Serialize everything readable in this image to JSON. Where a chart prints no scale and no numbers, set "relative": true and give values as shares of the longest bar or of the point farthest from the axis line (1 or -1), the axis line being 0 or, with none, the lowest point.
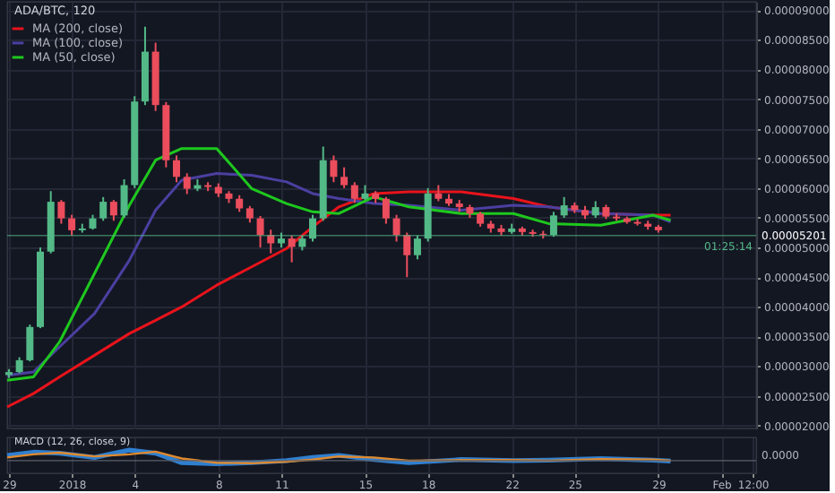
{
  "chart_data": [
    {
      "type": "candlestick",
      "title": "ADA/BTC, 120",
      "x": [
        "2017-12-29T00:00",
        "2017-12-29T12:00",
        "2017-12-30T00:00",
        "2017-12-30T12:00",
        "2017-12-31T00:00",
        "2017-12-31T12:00",
        "2018-01-01T00:00",
        "2018-01-01T12:00",
        "2018-01-02T00:00",
        "2018-01-02T12:00",
        "2018-01-03T00:00",
        "2018-01-03T12:00",
        "2018-01-04T00:00",
        "2018-01-04T12:00",
        "2018-01-05T00:00",
        "2018-01-05T12:00",
        "2018-01-06T00:00",
        "2018-01-06T12:00",
        "2018-01-07T00:00",
        "2018-01-07T12:00",
        "2018-01-08T00:00",
        "2018-01-08T12:00",
        "2018-01-09T00:00",
        "2018-01-09T12:00",
        "2018-01-10T00:00",
        "2018-01-10T12:00",
        "2018-01-11T00:00",
        "2018-01-11T12:00",
        "2018-01-12T00:00",
        "2018-01-12T12:00",
        "2018-01-13T00:00",
        "2018-01-13T12:00",
        "2018-01-14T00:00",
        "2018-01-14T12:00",
        "2018-01-15T00:00",
        "2018-01-15T12:00",
        "2018-01-16T00:00",
        "2018-01-16T12:00",
        "2018-01-17T00:00",
        "2018-01-17T12:00",
        "2018-01-18T00:00",
        "2018-01-18T12:00",
        "2018-01-19T00:00",
        "2018-01-19T12:00",
        "2018-01-20T00:00",
        "2018-01-20T12:00",
        "2018-01-21T00:00",
        "2018-01-21T12:00",
        "2018-01-22T00:00",
        "2018-01-22T12:00",
        "2018-01-23T00:00",
        "2018-01-23T12:00",
        "2018-01-24T00:00",
        "2018-01-24T12:00",
        "2018-01-25T00:00",
        "2018-01-25T12:00",
        "2018-01-26T00:00",
        "2018-01-26T12:00",
        "2018-01-27T00:00",
        "2018-01-27T12:00",
        "2018-01-28T00:00",
        "2018-01-28T12:00",
        "2018-01-29T00:00"
      ],
      "ohlc": [
        [
          2.85e-05,
          2.95e-05,
          2.8e-05,
          2.9e-05
        ],
        [
          2.9e-05,
          3.15e-05,
          2.88e-05,
          3.1e-05
        ],
        [
          3.1e-05,
          3.7e-05,
          3.08e-05,
          3.66e-05
        ],
        [
          3.66e-05,
          5e-05,
          3.64e-05,
          4.93e-05
        ],
        [
          4.93e-05,
          5.95e-05,
          4.9e-05,
          5.77e-05
        ],
        [
          5.77e-05,
          5.8e-05,
          5.4e-05,
          5.49e-05
        ],
        [
          5.49e-05,
          5.55e-05,
          5.2e-05,
          5.29e-05
        ],
        [
          5.29e-05,
          5.4e-05,
          5.25e-05,
          5.32e-05
        ],
        [
          5.32e-05,
          5.55e-05,
          5.3e-05,
          5.49e-05
        ],
        [
          5.49e-05,
          5.85e-05,
          5.45e-05,
          5.77e-05
        ],
        [
          5.77e-05,
          5.8e-05,
          5.45e-05,
          5.54e-05
        ],
        [
          5.54e-05,
          6.15e-05,
          5.5e-05,
          6.05e-05
        ],
        [
          6.05e-05,
          7.55e-05,
          6e-05,
          7.46e-05
        ],
        [
          7.46e-05,
          8.72e-05,
          7.4e-05,
          8.3e-05
        ],
        [
          8.3e-05,
          8.45e-05,
          7.3e-05,
          7.4e-05
        ],
        [
          7.4e-05,
          7.45e-05,
          6.35e-05,
          6.47e-05
        ],
        [
          6.47e-05,
          6.55e-05,
          6.1e-05,
          6.19e-05
        ],
        [
          6.19e-05,
          6.25e-05,
          5.9e-05,
          5.99e-05
        ],
        [
          5.99e-05,
          6.15e-05,
          5.95e-05,
          6.05e-05
        ],
        [
          6.05e-05,
          6.1e-05,
          5.95e-05,
          6.02e-05
        ],
        [
          6.02e-05,
          6.08e-05,
          5.85e-05,
          5.91e-05
        ],
        [
          5.91e-05,
          5.95e-05,
          5.75e-05,
          5.82e-05
        ],
        [
          5.82e-05,
          5.88e-05,
          5.6e-05,
          5.66e-05
        ],
        [
          5.66e-05,
          5.7e-05,
          5.42e-05,
          5.49e-05
        ],
        [
          5.49e-05,
          5.53e-05,
          5e-05,
          5.21e-05
        ],
        [
          5.21e-05,
          5.3e-05,
          4.9e-05,
          5.07e-05
        ],
        [
          5.07e-05,
          5.25e-05,
          5e-05,
          5.15e-05
        ],
        [
          5.15e-05,
          5.2e-05,
          4.75e-05,
          5.01e-05
        ],
        [
          5.01e-05,
          5.2e-05,
          4.95e-05,
          5.15e-05
        ],
        [
          5.15e-05,
          5.55e-05,
          5.1e-05,
          5.49e-05
        ],
        [
          5.49e-05,
          6.7e-05,
          5.45e-05,
          6.47e-05
        ],
        [
          6.47e-05,
          6.55e-05,
          6.1e-05,
          6.19e-05
        ],
        [
          6.19e-05,
          6.35e-05,
          6e-05,
          6.05e-05
        ],
        [
          6.05e-05,
          6.1e-05,
          5.75e-05,
          5.82e-05
        ],
        [
          5.82e-05,
          6.05e-05,
          5.8e-05,
          5.91e-05
        ],
        [
          5.91e-05,
          5.95e-05,
          5.75e-05,
          5.82e-05
        ],
        [
          5.82e-05,
          5.85e-05,
          5.4e-05,
          5.49e-05
        ],
        [
          5.49e-05,
          5.55e-05,
          5.1e-05,
          5.21e-05
        ],
        [
          5.21e-05,
          5.25e-05,
          4.5e-05,
          4.87e-05
        ],
        [
          4.87e-05,
          5.2e-05,
          4.8e-05,
          5.15e-05
        ],
        [
          5.15e-05,
          6e-05,
          5.1e-05,
          5.91e-05
        ],
        [
          5.91e-05,
          6.05e-05,
          5.78e-05,
          5.82e-05
        ],
        [
          5.82e-05,
          5.9e-05,
          5.7e-05,
          5.74e-05
        ],
        [
          5.74e-05,
          5.8e-05,
          5.6e-05,
          5.68e-05
        ],
        [
          5.68e-05,
          5.72e-05,
          5.5e-05,
          5.57e-05
        ],
        [
          5.57e-05,
          5.6e-05,
          5.35e-05,
          5.4e-05
        ],
        [
          5.4e-05,
          5.45e-05,
          5.25e-05,
          5.32e-05
        ],
        [
          5.32e-05,
          5.38e-05,
          5.2e-05,
          5.26e-05
        ],
        [
          5.26e-05,
          5.4e-05,
          5.23e-05,
          5.32e-05
        ],
        [
          5.32e-05,
          5.35e-05,
          5.2e-05,
          5.26e-05
        ],
        [
          5.26e-05,
          5.3e-05,
          5.18e-05,
          5.23e-05
        ],
        [
          5.23e-05,
          5.28e-05,
          5.15e-05,
          5.21e-05
        ],
        [
          5.21e-05,
          5.6e-05,
          5.18e-05,
          5.54e-05
        ],
        [
          5.54e-05,
          5.85e-05,
          5.5e-05,
          5.71e-05
        ],
        [
          5.71e-05,
          5.76e-05,
          5.58e-05,
          5.63e-05
        ],
        [
          5.63e-05,
          5.7e-05,
          5.48e-05,
          5.54e-05
        ],
        [
          5.54e-05,
          5.78e-05,
          5.5e-05,
          5.68e-05
        ],
        [
          5.68e-05,
          5.72e-05,
          5.48e-05,
          5.52e-05
        ],
        [
          5.52e-05,
          5.57e-05,
          5.45e-05,
          5.49e-05
        ],
        [
          5.49e-05,
          5.52e-05,
          5.4e-05,
          5.43e-05
        ],
        [
          5.43e-05,
          5.48e-05,
          5.37e-05,
          5.4e-05
        ],
        [
          5.4e-05,
          5.45e-05,
          5.3e-05,
          5.35e-05
        ],
        [
          5.35e-05,
          5.38e-05,
          5.25e-05,
          5.29e-05
        ]
      ],
      "colors": [
        "#53b987",
        "#53b987",
        "#53b987",
        "#53b987",
        "#53b987",
        "#eb4d5c",
        "#eb4d5c",
        "#53b987",
        "#53b987",
        "#53b987",
        "#eb4d5c",
        "#53b987",
        "#53b987",
        "#53b987",
        "#eb4d5c",
        "#eb4d5c",
        "#eb4d5c",
        "#eb4d5c",
        "#53b987",
        "#eb4d5c",
        "#eb4d5c",
        "#eb4d5c",
        "#eb4d5c",
        "#eb4d5c",
        "#eb4d5c",
        "#eb4d5c",
        "#53b987",
        "#eb4d5c",
        "#53b987",
        "#53b987",
        "#53b987",
        "#eb4d5c",
        "#eb4d5c",
        "#eb4d5c",
        "#53b987",
        "#eb4d5c",
        "#eb4d5c",
        "#eb4d5c",
        "#eb4d5c",
        "#53b987",
        "#53b987",
        "#eb4d5c",
        "#eb4d5c",
        "#eb4d5c",
        "#eb4d5c",
        "#eb4d5c",
        "#eb4d5c",
        "#eb4d5c",
        "#53b987",
        "#eb4d5c",
        "#eb4d5c",
        "#eb4d5c",
        "#53b987",
        "#53b987",
        "#eb4d5c",
        "#eb4d5c",
        "#53b987",
        "#eb4d5c",
        "#eb4d5c",
        "#eb4d5c",
        "#eb4d5c",
        "#eb4d5c",
        "#eb4d5c"
      ],
      "series": [
        {
          "name": "MA (200, close)",
          "type": "line",
          "color": "#e8131b",
          "x": [
            "2017-12-28T22:00",
            "2017-12-30T04:00",
            "2017-12-31T10:00",
            "2018-01-02T02:00",
            "2018-01-03T18:00",
            "2018-01-05T00:00",
            "2018-01-06T06:00",
            "2018-01-07T22:00",
            "2018-01-09T14:00",
            "2018-01-11T06:00",
            "2018-01-12T12:00",
            "2018-01-13T18:00",
            "2018-01-15T10:00",
            "2018-01-17T02:00",
            "2018-01-19T14:00",
            "2018-01-22T02:00",
            "2018-01-23T18:00",
            "2018-01-26T06:00",
            "2018-01-28T18:00",
            "2018-01-29T14:00"
          ],
          "values": [
            2.312e-05,
            2.537e-05,
            2.818e-05,
            3.183e-05,
            3.549e-05,
            3.773e-05,
            3.998e-05,
            4.364e-05,
            4.673e-05,
            4.982e-05,
            5.347e-05,
            5.684e-05,
            5.909e-05,
            5.937e-05,
            5.937e-05,
            5.825e-05,
            5.684e-05,
            5.572e-05,
            5.544e-05,
            5.544e-05
          ]
        },
        {
          "name": "MA (100, close)",
          "type": "line",
          "color": "#4b3fa0",
          "x": [
            "2017-12-28T22:00",
            "2017-12-30T04:00",
            "2017-12-31T10:00",
            "2018-01-02T02:00",
            "2018-01-03T18:00",
            "2018-01-05T00:00",
            "2018-01-06T06:00",
            "2018-01-07T22:00",
            "2018-01-09T14:00",
            "2018-01-11T06:00",
            "2018-01-12T12:00",
            "2018-01-13T18:00",
            "2018-01-15T10:00",
            "2018-01-17T02:00",
            "2018-01-19T14:00",
            "2018-01-22T02:00",
            "2018-01-23T18:00",
            "2018-01-26T06:00",
            "2018-01-28T18:00",
            "2018-01-29T14:00"
          ],
          "values": [
            2.846e-05,
            2.902e-05,
            3.324e-05,
            3.886e-05,
            4.785e-05,
            5.628e-05,
            6.134e-05,
            6.246e-05,
            6.218e-05,
            6.106e-05,
            5.909e-05,
            5.825e-05,
            5.74e-05,
            5.712e-05,
            5.628e-05,
            5.712e-05,
            5.684e-05,
            5.572e-05,
            5.544e-05,
            5.431e-05
          ]
        },
        {
          "name": "MA (50, close)",
          "type": "line",
          "color": "#1ec81e",
          "x": [
            "2017-12-28T22:00",
            "2017-12-30T04:00",
            "2017-12-31T10:00",
            "2018-01-02T02:00",
            "2018-01-03T18:00",
            "2018-01-05T00:00",
            "2018-01-06T06:00",
            "2018-01-07T22:00",
            "2018-01-09T14:00",
            "2018-01-11T06:00",
            "2018-01-12T12:00",
            "2018-01-13T18:00",
            "2018-01-15T10:00",
            "2018-01-17T02:00",
            "2018-01-19T14:00",
            "2018-01-22T02:00",
            "2018-01-23T18:00",
            "2018-01-26T06:00",
            "2018-01-28T18:00",
            "2018-01-29T14:00"
          ],
          "values": [
            2.762e-05,
            2.818e-05,
            3.408e-05,
            4.56e-05,
            5.712e-05,
            6.471e-05,
            6.668e-05,
            6.668e-05,
            5.993e-05,
            5.74e-05,
            5.6e-05,
            5.572e-05,
            5.853e-05,
            5.684e-05,
            5.572e-05,
            5.572e-05,
            5.403e-05,
            5.375e-05,
            5.544e-05,
            5.459e-05
          ]
        }
      ],
      "xlim": [
        "2017-12-28T22:00",
        "2018-02-02T16:00"
      ],
      "xticks": [
        {
          "value": "2017-12-29",
          "label": null
        },
        {
          "value": "2018-01-01",
          "label": null
        },
        {
          "value": "2018-01-04",
          "label": null
        },
        {
          "value": "2018-01-08",
          "label": null
        },
        {
          "value": "2018-01-11",
          "label": null
        },
        {
          "value": "2018-01-15",
          "label": null
        },
        {
          "value": "2018-01-18",
          "label": null
        },
        {
          "value": "2018-01-22",
          "label": null
        },
        {
          "value": "2018-01-25",
          "label": null
        },
        {
          "value": "2018-01-29",
          "label": null
        },
        {
          "value": "2018-02-01",
          "label": null
        }
      ],
      "ylim": [
        1.95e-05,
        9.14e-05
      ],
      "yticks": [
        {
          "value": 9e-05,
          "label": "0.00009000"
        },
        {
          "value": 8.5e-05,
          "label": "0.00008500"
        },
        {
          "value": 8e-05,
          "label": "0.00008000"
        },
        {
          "value": 7.5e-05,
          "label": "0.00007500"
        },
        {
          "value": 7e-05,
          "label": "0.00007000"
        },
        {
          "value": 6.5e-05,
          "label": "0.00006500"
        },
        {
          "value": 6e-05,
          "label": "0.00006000"
        },
        {
          "value": 5.5e-05,
          "label": "0.00005500"
        },
        {
          "value": 5e-05,
          "label": "0.00005000"
        },
        {
          "value": 4.5e-05,
          "label": "0.00004500"
        },
        {
          "value": 4e-05,
          "label": "0.00004000"
        },
        {
          "value": 3.5e-05,
          "label": "0.00003500"
        },
        {
          "value": 3e-05,
          "label": "0.00003000"
        },
        {
          "value": 2.5e-05,
          "label": "0.00002500"
        },
        {
          "value": 2e-05,
          "label": "0.00002000"
        }
      ],
      "ref_lines": [
        {
          "axis": "y",
          "value": 5.201e-05,
          "label": "0.00005201",
          "color": "#53b987"
        }
      ],
      "annotations": [
        "01:25:14"
      ],
      "grid": true,
      "legend": "top left",
      "tick_labels": "y"
    },
    {
      "type": "line",
      "title": "MACD (12, 26, close, 9)",
      "relative": true,
      "series": [
        {
          "color": "#2f7fd0",
          "x": [
            "2017-12-28T22:00",
            "2017-12-30T04:00",
            "2017-12-31T10:00",
            "2018-01-02T02:00",
            "2018-01-03T18:00",
            "2018-01-05T00:00",
            "2018-01-06T06:00",
            "2018-01-07T22:00",
            "2018-01-09T14:00",
            "2018-01-11T06:00",
            "2018-01-12T12:00",
            "2018-01-13T18:00",
            "2018-01-15T10:00",
            "2018-01-17T02:00",
            "2018-01-19T14:00",
            "2018-01-22T02:00",
            "2018-01-23T18:00",
            "2018-01-26T06:00",
            "2018-01-28T18:00",
            "2018-01-29T14:00"
          ],
          "values": [
            0.5,
            0.8,
            0.7,
            0.3,
            1.0,
            0.7,
            -0.2,
            -0.3,
            -0.2,
            0.0,
            0.3,
            0.5,
            0.1,
            -0.2,
            0.1,
            0.0,
            0.05,
            0.2,
            0.05,
            -0.05
          ]
        },
        {
          "color": "#e08a2e",
          "x": [
            "2017-12-28T22:00",
            "2017-12-30T04:00",
            "2017-12-31T10:00",
            "2018-01-02T02:00",
            "2018-01-03T18:00",
            "2018-01-05T00:00",
            "2018-01-06T06:00",
            "2018-01-07T22:00",
            "2018-01-09T14:00",
            "2018-01-11T06:00",
            "2018-01-12T12:00",
            "2018-01-13T18:00",
            "2018-01-15T10:00",
            "2018-01-17T02:00",
            "2018-01-19T14:00",
            "2018-01-22T02:00",
            "2018-01-23T18:00",
            "2018-01-26T06:00",
            "2018-01-28T18:00",
            "2018-01-29T14:00"
          ],
          "values": [
            0.3,
            0.6,
            0.75,
            0.4,
            0.6,
            0.85,
            0.2,
            -0.2,
            -0.25,
            -0.1,
            0.1,
            0.4,
            0.3,
            0.0,
            0.05,
            0.05,
            0.0,
            0.15,
            0.1,
            0.0
          ]
        }
      ],
      "xlim": [
        "2017-12-28T22:00",
        "2018-02-02T16:00"
      ],
      "xticks": [
        {
          "value": "2017-12-29",
          "label": "29"
        },
        {
          "value": "2018-01-01",
          "label": "2018"
        },
        {
          "value": "2018-01-04",
          "label": "4"
        },
        {
          "value": "2018-01-08",
          "label": "8"
        },
        {
          "value": "2018-01-11",
          "label": "11"
        },
        {
          "value": "2018-01-15",
          "label": "15"
        },
        {
          "value": "2018-01-18",
          "label": "18"
        },
        {
          "value": "2018-01-22",
          "label": "22"
        },
        {
          "value": "2018-01-25",
          "label": "25"
        },
        {
          "value": "2018-01-29",
          "label": "29"
        },
        {
          "value": "2018-02-01",
          "label": "Feb"
        },
        {
          "value": "2018-02-02T12:00",
          "label": "12:00"
        }
      ],
      "annotations": [
        "0.0000"
      ],
      "grid": true,
      "tick_labels": "x"
    }
  ]
}
